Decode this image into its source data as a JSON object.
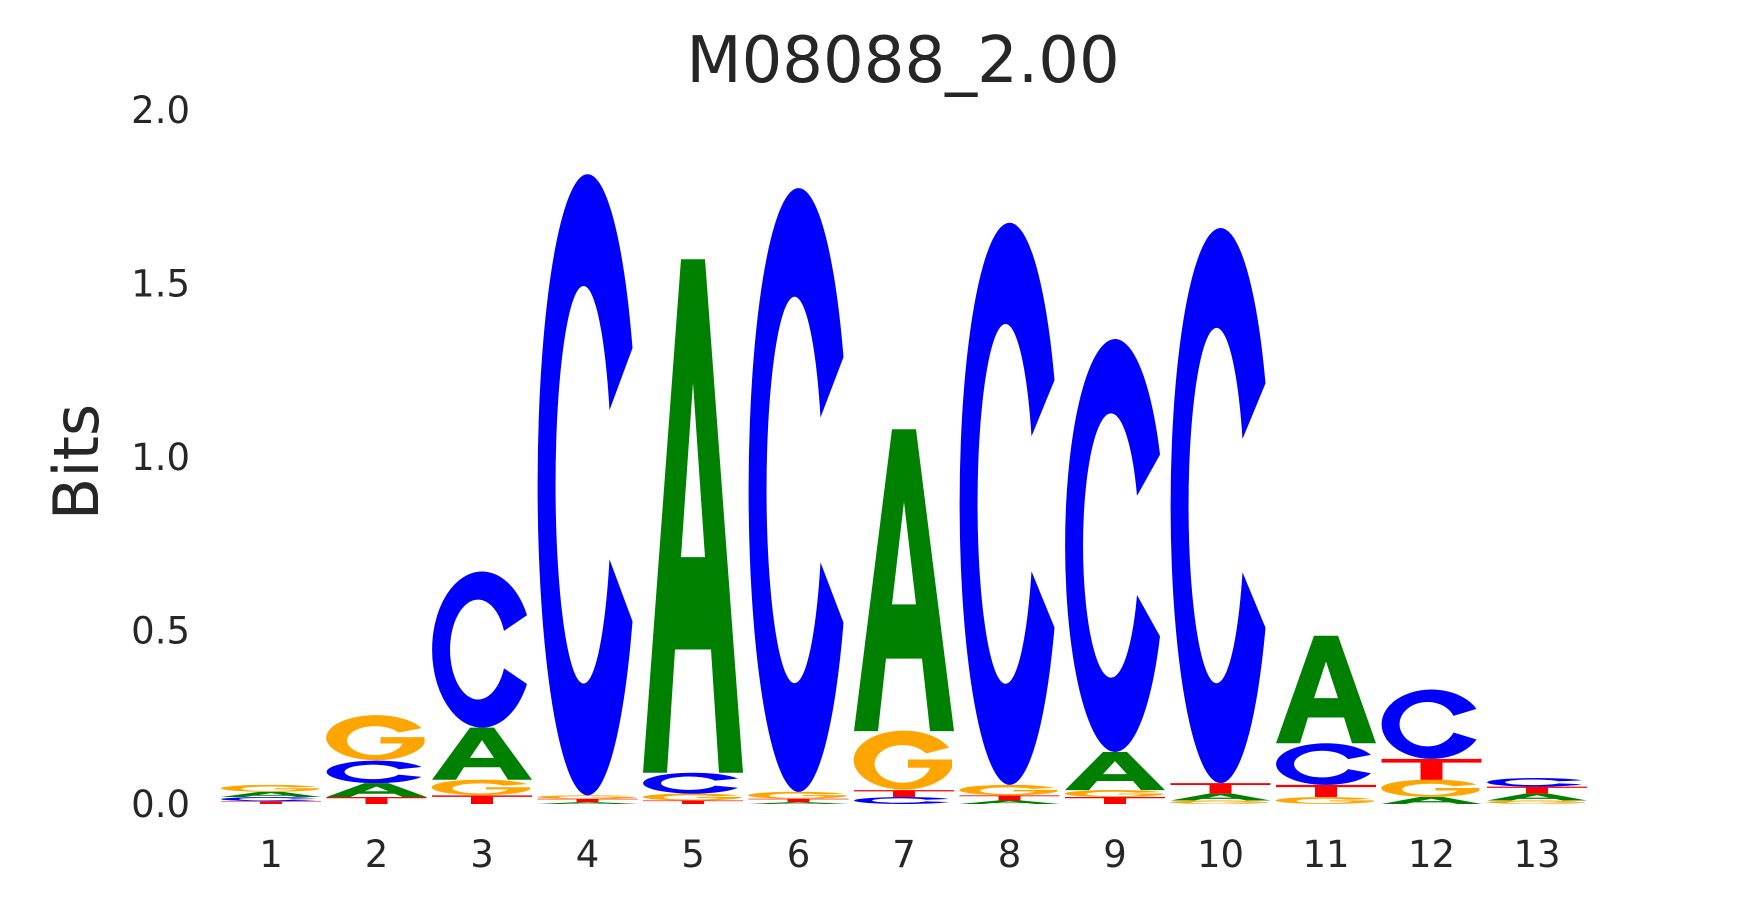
{
  "chart_data": {
    "type": "sequence-logo",
    "title": "M08088_2.00",
    "xlabel": "",
    "ylabel": "Bits",
    "ylim": [
      0,
      2.0
    ],
    "yticks": [
      "0.0",
      "0.5",
      "1.0",
      "1.5",
      "2.0"
    ],
    "categories": [
      "1",
      "2",
      "3",
      "4",
      "5",
      "6",
      "7",
      "8",
      "9",
      "10",
      "11",
      "12",
      "13"
    ],
    "colors": {
      "A": "#008000",
      "C": "#0000ff",
      "G": "#ffa500",
      "T": "#ff0000"
    },
    "positions": [
      [
        [
          "T",
          0.008
        ],
        [
          "C",
          0.012
        ],
        [
          "A",
          0.015
        ],
        [
          "G",
          0.02
        ]
      ],
      [
        [
          "T",
          0.02
        ],
        [
          "A",
          0.04
        ],
        [
          "C",
          0.065
        ],
        [
          "G",
          0.13
        ]
      ],
      [
        [
          "T",
          0.025
        ],
        [
          "G",
          0.045
        ],
        [
          "A",
          0.15
        ],
        [
          "C",
          0.45
        ]
      ],
      [
        [
          "A",
          0.005
        ],
        [
          "T",
          0.01
        ],
        [
          "G",
          0.01
        ],
        [
          "C",
          1.79
        ]
      ],
      [
        [
          "T",
          0.01
        ],
        [
          "G",
          0.02
        ],
        [
          "C",
          0.06
        ],
        [
          "A",
          1.48
        ]
      ],
      [
        [
          "A",
          0.005
        ],
        [
          "T",
          0.01
        ],
        [
          "G",
          0.02
        ],
        [
          "C",
          1.74
        ]
      ],
      [
        [
          "C",
          0.02
        ],
        [
          "T",
          0.02
        ],
        [
          "G",
          0.17
        ],
        [
          "A",
          0.87
        ]
      ],
      [
        [
          "A",
          0.01
        ],
        [
          "T",
          0.015
        ],
        [
          "G",
          0.03
        ],
        [
          "C",
          1.62
        ]
      ],
      [
        [
          "T",
          0.02
        ],
        [
          "G",
          0.02
        ],
        [
          "A",
          0.11
        ],
        [
          "C",
          1.19
        ]
      ],
      [
        [
          "G",
          0.01
        ],
        [
          "A",
          0.02
        ],
        [
          "T",
          0.03
        ],
        [
          "C",
          1.6
        ]
      ],
      [
        [
          "G",
          0.02
        ],
        [
          "T",
          0.035
        ],
        [
          "C",
          0.12
        ],
        [
          "A",
          0.31
        ]
      ],
      [
        [
          "A",
          0.02
        ],
        [
          "G",
          0.05
        ],
        [
          "T",
          0.06
        ],
        [
          "C",
          0.2
        ]
      ],
      [
        [
          "G",
          0.01
        ],
        [
          "A",
          0.02
        ],
        [
          "T",
          0.02
        ],
        [
          "C",
          0.025
        ]
      ]
    ]
  }
}
